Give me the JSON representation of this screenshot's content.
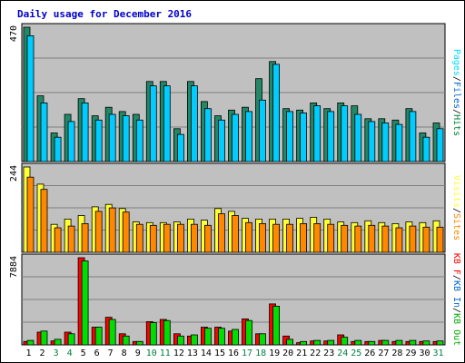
{
  "colors": {
    "background": "#ffffff",
    "frame": "#000000",
    "panel": "#c0c0c0",
    "grid": "#808080",
    "title": "#0000cc",
    "hits": "#006633",
    "hits_fill": "#228866",
    "files": "#00ccff",
    "pages": "#00ddff",
    "visits": "#ffff33",
    "sites": "#ff8800",
    "kbytes": "#ff0000",
    "kbin": "#00aa00",
    "kbout": "#00dd00",
    "label_black": "#000000",
    "label_green": "#008040"
  },
  "chart_data": [
    {
      "type": "bar",
      "title": "Daily usage for December 2016",
      "ymax_label": "470",
      "ylim": [
        0,
        470
      ],
      "legend": [
        {
          "name": "Pages",
          "color": "#00ddff"
        },
        {
          "name": "/",
          "color": "#000000"
        },
        {
          "name": "Files",
          "color": "#0066cc"
        },
        {
          "name": "/",
          "color": "#000000"
        },
        {
          "name": "Hits",
          "color": "#008040"
        }
      ],
      "categories": [
        "1",
        "2",
        "3",
        "4",
        "5",
        "6",
        "7",
        "8",
        "9",
        "10",
        "11",
        "12",
        "13",
        "14",
        "15",
        "16",
        "17",
        "18",
        "19",
        "20",
        "21",
        "22",
        "23",
        "24",
        "25",
        "26",
        "27",
        "28",
        "29",
        "30",
        "31"
      ],
      "series": [
        {
          "name": "Hits",
          "values": [
            470,
            230,
            100,
            165,
            220,
            160,
            190,
            175,
            165,
            280,
            280,
            115,
            280,
            210,
            160,
            180,
            190,
            290,
            350,
            185,
            180,
            205,
            185,
            205,
            195,
            150,
            150,
            145,
            185,
            100,
            135
          ]
        },
        {
          "name": "Files",
          "values": [
            440,
            205,
            85,
            140,
            205,
            145,
            165,
            160,
            145,
            265,
            265,
            95,
            265,
            185,
            145,
            165,
            175,
            215,
            340,
            175,
            170,
            195,
            175,
            195,
            165,
            140,
            135,
            130,
            175,
            85,
            115
          ]
        }
      ]
    },
    {
      "type": "bar",
      "ymax_label": "244",
      "ylim": [
        0,
        244
      ],
      "legend": [
        {
          "name": "Visits",
          "color": "#ffff33"
        },
        {
          "name": "/",
          "color": "#000000"
        },
        {
          "name": "Sites",
          "color": "#ff8800"
        }
      ],
      "categories": [
        "1",
        "2",
        "3",
        "4",
        "5",
        "6",
        "7",
        "8",
        "9",
        "10",
        "11",
        "12",
        "13",
        "14",
        "15",
        "16",
        "17",
        "18",
        "19",
        "20",
        "21",
        "22",
        "23",
        "24",
        "25",
        "26",
        "27",
        "28",
        "29",
        "30",
        "31"
      ],
      "series": [
        {
          "name": "Visits",
          "values": [
            244,
            195,
            80,
            95,
            105,
            130,
            137,
            125,
            87,
            85,
            85,
            87,
            95,
            92,
            125,
            117,
            97,
            95,
            95,
            95,
            97,
            100,
            95,
            87,
            85,
            90,
            85,
            82,
            87,
            85,
            90
          ]
        },
        {
          "name": "Sites",
          "values": [
            215,
            180,
            70,
            75,
            82,
            117,
            127,
            115,
            80,
            77,
            80,
            80,
            80,
            77,
            110,
            105,
            85,
            82,
            80,
            80,
            82,
            82,
            80,
            77,
            75,
            77,
            75,
            70,
            75,
            72,
            72
          ]
        }
      ]
    },
    {
      "type": "bar",
      "ymax_label": "7884",
      "ylim": [
        0,
        7884
      ],
      "legend": [
        {
          "name": "KB F",
          "color": "#ff0000"
        },
        {
          "name": "/",
          "color": "#000000"
        },
        {
          "name": "KB In",
          "color": "#0066cc"
        },
        {
          "name": "/",
          "color": "#000000"
        },
        {
          "name": "KB Out",
          "color": "#00aa00"
        }
      ],
      "categories": [
        "1",
        "2",
        "3",
        "4",
        "5",
        "6",
        "7",
        "8",
        "9",
        "10",
        "11",
        "12",
        "13",
        "14",
        "15",
        "16",
        "17",
        "18",
        "19",
        "20",
        "21",
        "22",
        "23",
        "24",
        "25",
        "26",
        "27",
        "28",
        "29",
        "30",
        "31"
      ],
      "series": [
        {
          "name": "KB F",
          "values": [
            300,
            1150,
            350,
            1150,
            7884,
            1600,
            2500,
            1000,
            300,
            2100,
            2300,
            1000,
            800,
            1600,
            1600,
            1250,
            2350,
            1000,
            3700,
            800,
            200,
            350,
            350,
            900,
            300,
            300,
            400,
            300,
            300,
            300,
            300
          ]
        },
        {
          "name": "KB Out",
          "values": [
            400,
            1250,
            500,
            1000,
            7600,
            1600,
            2300,
            800,
            300,
            2000,
            2200,
            800,
            900,
            1500,
            1500,
            1400,
            2200,
            1000,
            3500,
            500,
            300,
            400,
            400,
            700,
            400,
            300,
            400,
            400,
            400,
            350,
            350
          ]
        }
      ]
    }
  ],
  "x_label_colors": [
    "black",
    "black",
    "green",
    "green",
    "black",
    "black",
    "black",
    "black",
    "black",
    "green",
    "green",
    "black",
    "black",
    "black",
    "black",
    "black",
    "green",
    "green",
    "black",
    "black",
    "black",
    "black",
    "black",
    "green",
    "green",
    "black",
    "black",
    "black",
    "black",
    "black",
    "green"
  ]
}
